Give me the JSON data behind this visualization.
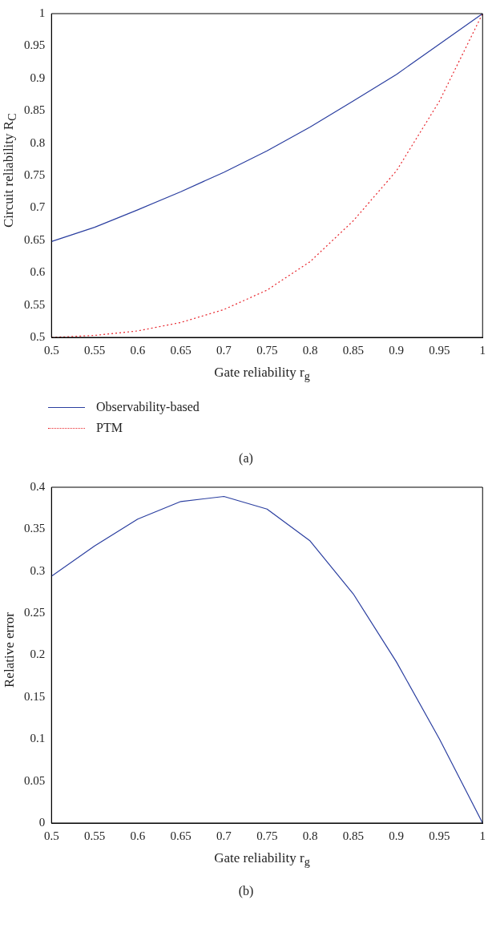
{
  "chart_data": [
    {
      "type": "line",
      "xlabel": "Gate reliability r$_{g}$",
      "ylabel": "Circuit reliability R$_{C}$",
      "annotations": [
        "(a)"
      ],
      "x": [
        0.5,
        0.55,
        0.6,
        0.65,
        0.7,
        0.75,
        0.8,
        0.85,
        0.9,
        0.95,
        1
      ],
      "series": [
        {
          "name": "Observability-based",
          "color": "#2b3fa0",
          "line_style": "solid",
          "values": [
            0.648,
            0.67,
            0.697,
            0.725,
            0.755,
            0.788,
            0.825,
            0.865,
            0.906,
            0.953,
            1
          ]
        },
        {
          "name": "PTM",
          "color": "#e8242b",
          "line_style": "dotted",
          "values": [
            0.5,
            0.503,
            0.51,
            0.523,
            0.543,
            0.573,
            0.617,
            0.68,
            0.757,
            0.865,
            1
          ]
        }
      ],
      "xlim": [
        0.5,
        1
      ],
      "xticks": [
        0.5,
        0.55,
        0.6,
        0.65,
        0.7,
        0.75,
        0.8,
        0.85,
        0.9,
        0.95,
        1
      ],
      "ylim": [
        0.5,
        1
      ],
      "yticks": [
        0.5,
        0.55,
        0.6,
        0.65,
        0.7,
        0.75,
        0.8,
        0.85,
        0.9,
        0.95,
        1
      ],
      "grid": false,
      "legend": "bottom",
      "marker": "none"
    },
    {
      "type": "line",
      "xlabel": "Gate reliability r$_{g}$",
      "ylabel": "Relative error",
      "annotations": [
        "(b)"
      ],
      "x": [
        0.5,
        0.55,
        0.6,
        0.65,
        0.7,
        0.75,
        0.8,
        0.85,
        0.9,
        0.95,
        1
      ],
      "series": [
        {
          "color": "#2b3fa0",
          "line_style": "solid",
          "values": [
            0.294,
            0.33,
            0.362,
            0.383,
            0.389,
            0.374,
            0.336,
            0.273,
            0.192,
            0.1,
            0
          ]
        }
      ],
      "xlim": [
        0.5,
        1
      ],
      "xticks": [
        0.5,
        0.55,
        0.6,
        0.65,
        0.7,
        0.75,
        0.8,
        0.85,
        0.9,
        0.95,
        1
      ],
      "ylim": [
        0,
        0.4
      ],
      "yticks": [
        0,
        0.05,
        0.1,
        0.15,
        0.2,
        0.25,
        0.3,
        0.35,
        0.4
      ],
      "grid": false,
      "legend": false,
      "marker": "none"
    }
  ]
}
